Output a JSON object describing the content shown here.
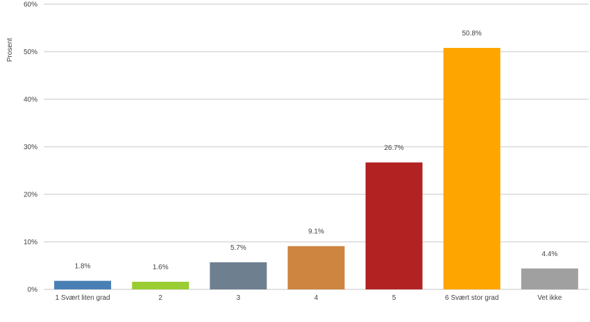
{
  "chart_data": {
    "type": "bar",
    "title": "",
    "xlabel": "",
    "ylabel": "Prosent",
    "categories": [
      "1 Svært liten grad",
      "2",
      "3",
      "4",
      "5",
      "6 Svært stor grad",
      "Vet ikke"
    ],
    "values": [
      1.8,
      1.6,
      5.7,
      9.1,
      26.7,
      50.8,
      4.4
    ],
    "data_labels": [
      "1.8%",
      "1.6%",
      "5.7%",
      "9.1%",
      "26.7%",
      "50.8%",
      "4.4%"
    ],
    "colors": [
      "#4a7fb5",
      "#9acd32",
      "#6e7f8f",
      "#cd853f",
      "#b22222",
      "#ffa500",
      "#a0a0a0"
    ],
    "ylim": [
      0,
      60
    ],
    "yticks": [
      0,
      10,
      20,
      30,
      40,
      50,
      60
    ],
    "ytick_labels": [
      "0%",
      "10%",
      "20%",
      "30%",
      "40%",
      "50%",
      "60%"
    ],
    "grid": true,
    "legend": "none"
  }
}
